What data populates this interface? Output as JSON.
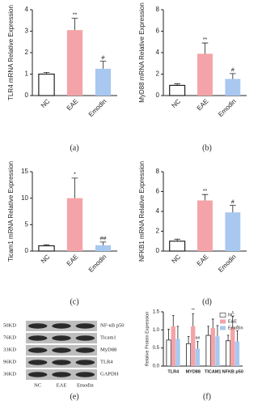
{
  "chart_data": [
    {
      "type": "bar",
      "y_label": "TLR4 mRNA Relative Expression",
      "panel": "(a)",
      "categories": [
        "NC",
        "EAE",
        "Emodin"
      ],
      "values": [
        1.0,
        3.05,
        1.25
      ],
      "errors": [
        0.08,
        0.55,
        0.35
      ],
      "colors": [
        "#ffffff",
        "#f4a3a8",
        "#a8c8f0"
      ],
      "annotations": [
        null,
        "**",
        "#"
      ],
      "ylim": [
        0,
        4
      ],
      "yticks": [
        0,
        1,
        2,
        3,
        4
      ]
    },
    {
      "type": "bar",
      "y_label": "MyD88 mRNA Relative Expression",
      "panel": "(b)",
      "categories": [
        "NC",
        "EAE",
        "Emodin"
      ],
      "values": [
        0.95,
        3.9,
        1.55
      ],
      "errors": [
        0.15,
        1.0,
        0.5
      ],
      "colors": [
        "#ffffff",
        "#f4a3a8",
        "#a8c8f0"
      ],
      "annotations": [
        null,
        "**",
        "#"
      ],
      "ylim": [
        0,
        8
      ],
      "yticks": [
        0,
        2,
        4,
        6,
        8
      ]
    },
    {
      "type": "bar",
      "y_label": "Ticam1 mRNA Relative Expression",
      "panel": "(c)",
      "categories": [
        "NC",
        "EAE",
        "Emodin"
      ],
      "values": [
        1.0,
        10.0,
        1.1
      ],
      "errors": [
        0.2,
        3.8,
        0.6
      ],
      "colors": [
        "#ffffff",
        "#f4a3a8",
        "#a8c8f0"
      ],
      "annotations": [
        null,
        "*",
        "##"
      ],
      "ylim": [
        0,
        15
      ],
      "yticks": [
        0,
        5,
        10,
        15
      ]
    },
    {
      "type": "bar",
      "y_label": "NFKB1 mRNA Relative Expression",
      "panel": "(d)",
      "categories": [
        "NC",
        "EAE",
        "Emodin"
      ],
      "values": [
        1.0,
        5.1,
        3.9
      ],
      "errors": [
        0.2,
        0.6,
        0.7
      ],
      "colors": [
        "#ffffff",
        "#f4a3a8",
        "#a8c8f0"
      ],
      "annotations": [
        null,
        "**",
        "#"
      ],
      "ylim": [
        0,
        8
      ],
      "yticks": [
        0,
        2,
        4,
        6,
        8
      ]
    },
    {
      "type": "grouped_bar",
      "y_label": "Relative Protein Expression",
      "panel": "(f)",
      "categories": [
        "TLR4",
        "MYD88",
        "TICAM1",
        "NFKB p50"
      ],
      "series": [
        {
          "name": "NC",
          "color": "#ffffff",
          "values": [
            0.72,
            0.62,
            0.85,
            0.7
          ],
          "errors": [
            0.3,
            0.2,
            0.25,
            0.15
          ],
          "annotations": [
            null,
            null,
            null,
            null
          ]
        },
        {
          "name": "EAE",
          "color": "#f4a3a8",
          "values": [
            1.1,
            1.1,
            1.05,
            1.07
          ],
          "errors": [
            0.3,
            0.35,
            0.25,
            0.3
          ],
          "annotations": [
            null,
            "**",
            null,
            "*"
          ]
        },
        {
          "name": "Emodin",
          "color": "#a8c8f0",
          "values": [
            0.75,
            0.48,
            0.82,
            0.68
          ],
          "errors": [
            0.35,
            0.2,
            0.3,
            0.3
          ],
          "annotations": [
            null,
            "##",
            null,
            "*"
          ]
        }
      ],
      "ylim": [
        0,
        1.5
      ],
      "yticks": [
        {
          "value": 0,
          "label": "0.0"
        },
        {
          "value": 0.5,
          "label": "0.5"
        },
        {
          "value": 1,
          "label": "1.0"
        },
        {
          "value": 1.5,
          "label": "1.5"
        }
      ],
      "legend": "upper right"
    }
  ],
  "blot": {
    "panel": "(e)",
    "weights": [
      "50KD",
      "76KD",
      "33KD",
      "96KD",
      "36KD"
    ],
    "proteins": [
      "NF-κB p50",
      "Ticam1",
      "MyD88",
      "TLR4",
      "GAPDH"
    ],
    "lanes": [
      "NC",
      "EAE",
      "Emodin"
    ]
  }
}
